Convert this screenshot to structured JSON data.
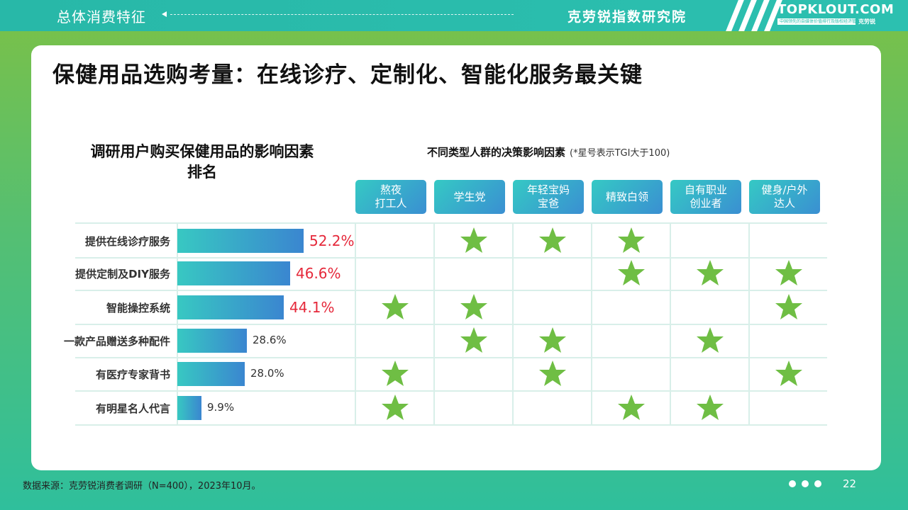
{
  "header": {
    "section": "总体消费特征",
    "institute": "克劳锐指数研究院",
    "logo": "TOPKLOUT.COM",
    "logo_tagline": "中国领先的自媒体价值排行及版权经济管理",
    "logo_cn": "克劳锐"
  },
  "title": "保健用品选购考量：在线诊疗、定制化、智能化服务最关键",
  "left_title": "调研用户购买保健用品的影响因素排名",
  "right_title": "不同类型人群的决策影响因素",
  "right_note": "(*星号表示TGI大于100)",
  "groups": [
    "熬夜\n打工人",
    "学生党",
    "年轻宝妈\n宝爸",
    "精致白领",
    "自有职业\n创业者",
    "健身/户外\n达人"
  ],
  "factors": [
    {
      "label": "提供在线诊疗服务",
      "value": 52.2,
      "value_text": "52.2%",
      "stars": [
        false,
        true,
        true,
        true,
        false,
        false
      ]
    },
    {
      "label": "提供定制及DIY服务",
      "value": 46.6,
      "value_text": "46.6%",
      "stars": [
        false,
        false,
        false,
        true,
        true,
        true
      ]
    },
    {
      "label": "智能操控系统",
      "value": 44.1,
      "value_text": "44.1%",
      "stars": [
        true,
        true,
        false,
        false,
        false,
        true
      ]
    },
    {
      "label": "一款产品赠送多种配件",
      "value": 28.6,
      "value_text": "28.6%",
      "stars": [
        false,
        true,
        true,
        false,
        true,
        false
      ]
    },
    {
      "label": "有医疗专家背书",
      "value": 28.0,
      "value_text": "28.0%",
      "stars": [
        true,
        false,
        true,
        false,
        false,
        true
      ]
    },
    {
      "label": "有明星名人代言",
      "value": 9.9,
      "value_text": "9.9%",
      "stars": [
        true,
        false,
        false,
        true,
        true,
        false
      ]
    }
  ],
  "colors": {
    "star": "#6fbe44",
    "highlight_value": "#e5283a",
    "bar_start": "#38c8c2",
    "bar_end": "#3a86d0"
  },
  "footer": {
    "source": "数据来源：克劳锐消费者调研（N=400），2023年10月。",
    "page": "22"
  }
}
